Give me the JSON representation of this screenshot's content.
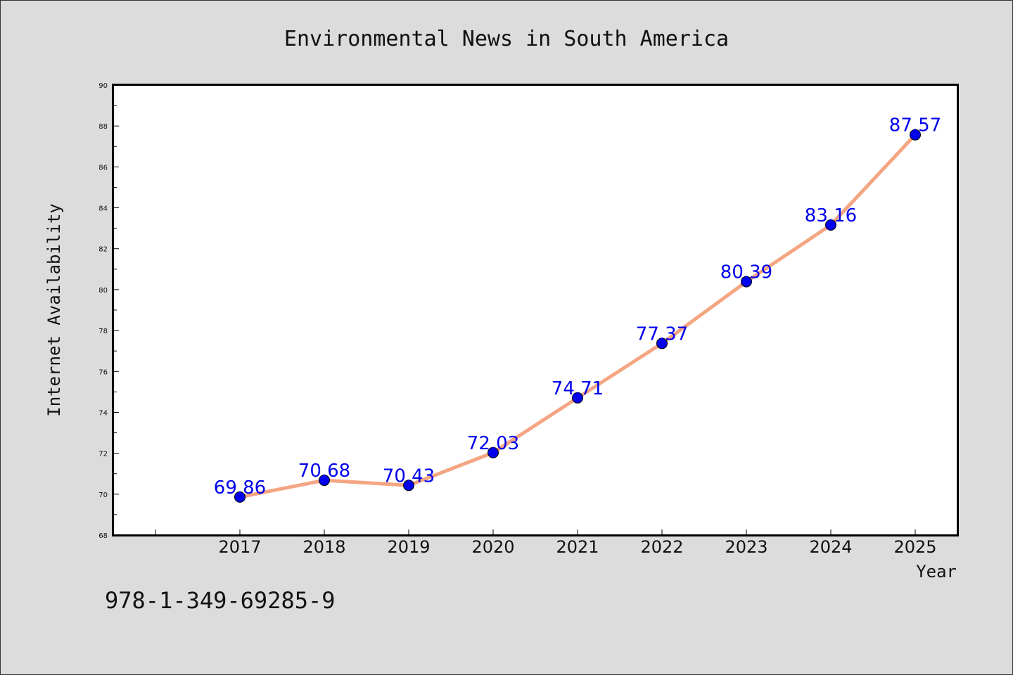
{
  "colors": {
    "background": "#dcdcdc",
    "plot_background": "#ffffff",
    "line": "#f4a582",
    "marker": "#0000ee",
    "data_label": "#0000ee"
  },
  "chart_data": {
    "type": "line",
    "title": "Environmental News in South America",
    "xlabel": "Year",
    "ylabel": "Internet Availability",
    "categories": [
      "2017",
      "2018",
      "2019",
      "2020",
      "2021",
      "2022",
      "2023",
      "2024",
      "2025"
    ],
    "series": [
      {
        "values": [
          69.86,
          70.68,
          70.43,
          72.03,
          74.71,
          77.37,
          80.39,
          83.16,
          87.57
        ],
        "labels": [
          "69.86",
          "70.68",
          "70.43",
          "72.03",
          "74.71",
          "77.37",
          "80.39",
          "83.16",
          "87.57"
        ]
      }
    ],
    "ylim": [
      68,
      90
    ],
    "yticks": [
      "68",
      "70",
      "72",
      "74",
      "76",
      "78",
      "80",
      "82",
      "84",
      "86",
      "88",
      "90"
    ],
    "grid": false,
    "legend": "none"
  },
  "footer": {
    "isbn": "978-1-349-69285-9"
  }
}
